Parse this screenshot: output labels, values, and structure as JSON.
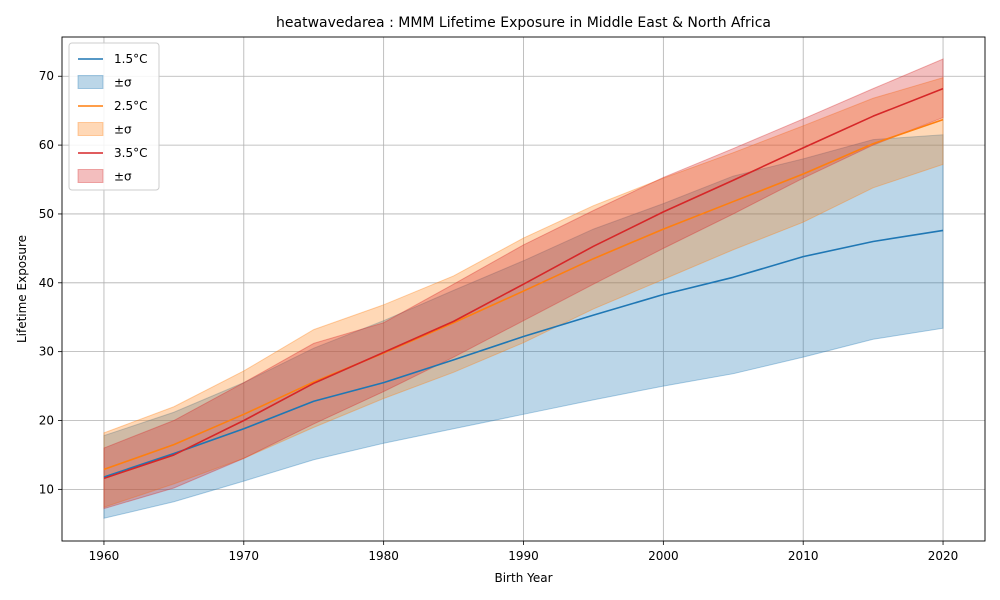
{
  "chart_data": {
    "type": "line",
    "title": "heatwavedarea : MMM Lifetime Exposure in Middle East & North Africa",
    "xlabel": "Birth Year",
    "ylabel": "Lifetime Exposure",
    "xlim": [
      1957,
      2023
    ],
    "ylim": [
      2.5,
      75.7
    ],
    "xticks": [
      1960,
      1970,
      1980,
      1990,
      2000,
      2010,
      2020
    ],
    "yticks": [
      10,
      20,
      30,
      40,
      50,
      60,
      70
    ],
    "grid": true,
    "legend_position": "top-left",
    "band_label": "±σ",
    "x": [
      1960,
      1965,
      1970,
      1975,
      1980,
      1985,
      1990,
      1995,
      2000,
      2005,
      2010,
      2015,
      2020
    ],
    "series": [
      {
        "name": "1.5°C",
        "color": "#1f77b4",
        "values": [
          11.8,
          15.2,
          18.8,
          22.8,
          25.5,
          28.8,
          32.2,
          35.3,
          38.3,
          40.8,
          43.8,
          46.0,
          47.6
        ],
        "upper": [
          17.8,
          21.2,
          25.5,
          30.5,
          34.5,
          38.9,
          43.2,
          47.8,
          51.5,
          55.5,
          58.0,
          60.8,
          61.5
        ],
        "lower": [
          5.8,
          8.2,
          11.2,
          14.3,
          16.7,
          18.8,
          20.9,
          23.0,
          25.0,
          26.8,
          29.2,
          31.8,
          33.4
        ]
      },
      {
        "name": "2.5°C",
        "color": "#ff7f0e",
        "values": [
          12.9,
          16.5,
          20.9,
          25.6,
          29.8,
          34.2,
          38.8,
          43.5,
          47.8,
          51.8,
          55.8,
          60.2,
          63.7
        ],
        "upper": [
          18.2,
          22.0,
          27.2,
          33.2,
          36.8,
          41.0,
          46.5,
          51.2,
          55.2,
          58.9,
          62.8,
          66.8,
          69.8
        ],
        "lower": [
          7.4,
          10.8,
          14.5,
          19.0,
          23.2,
          27.0,
          31.3,
          36.2,
          40.5,
          44.8,
          48.8,
          53.8,
          57.2
        ]
      },
      {
        "name": "3.5°C",
        "color": "#d62728",
        "values": [
          11.6,
          15.0,
          20.0,
          25.4,
          29.9,
          34.4,
          39.8,
          45.3,
          50.3,
          54.9,
          59.6,
          64.2,
          68.2
        ],
        "upper": [
          16.0,
          20.0,
          25.5,
          31.2,
          34.2,
          39.8,
          45.5,
          50.5,
          55.3,
          59.5,
          63.8,
          68.2,
          72.5
        ],
        "lower": [
          7.2,
          10.2,
          14.5,
          19.5,
          24.2,
          29.2,
          34.5,
          39.8,
          45.0,
          50.0,
          55.2,
          60.0,
          64.0
        ]
      }
    ]
  }
}
